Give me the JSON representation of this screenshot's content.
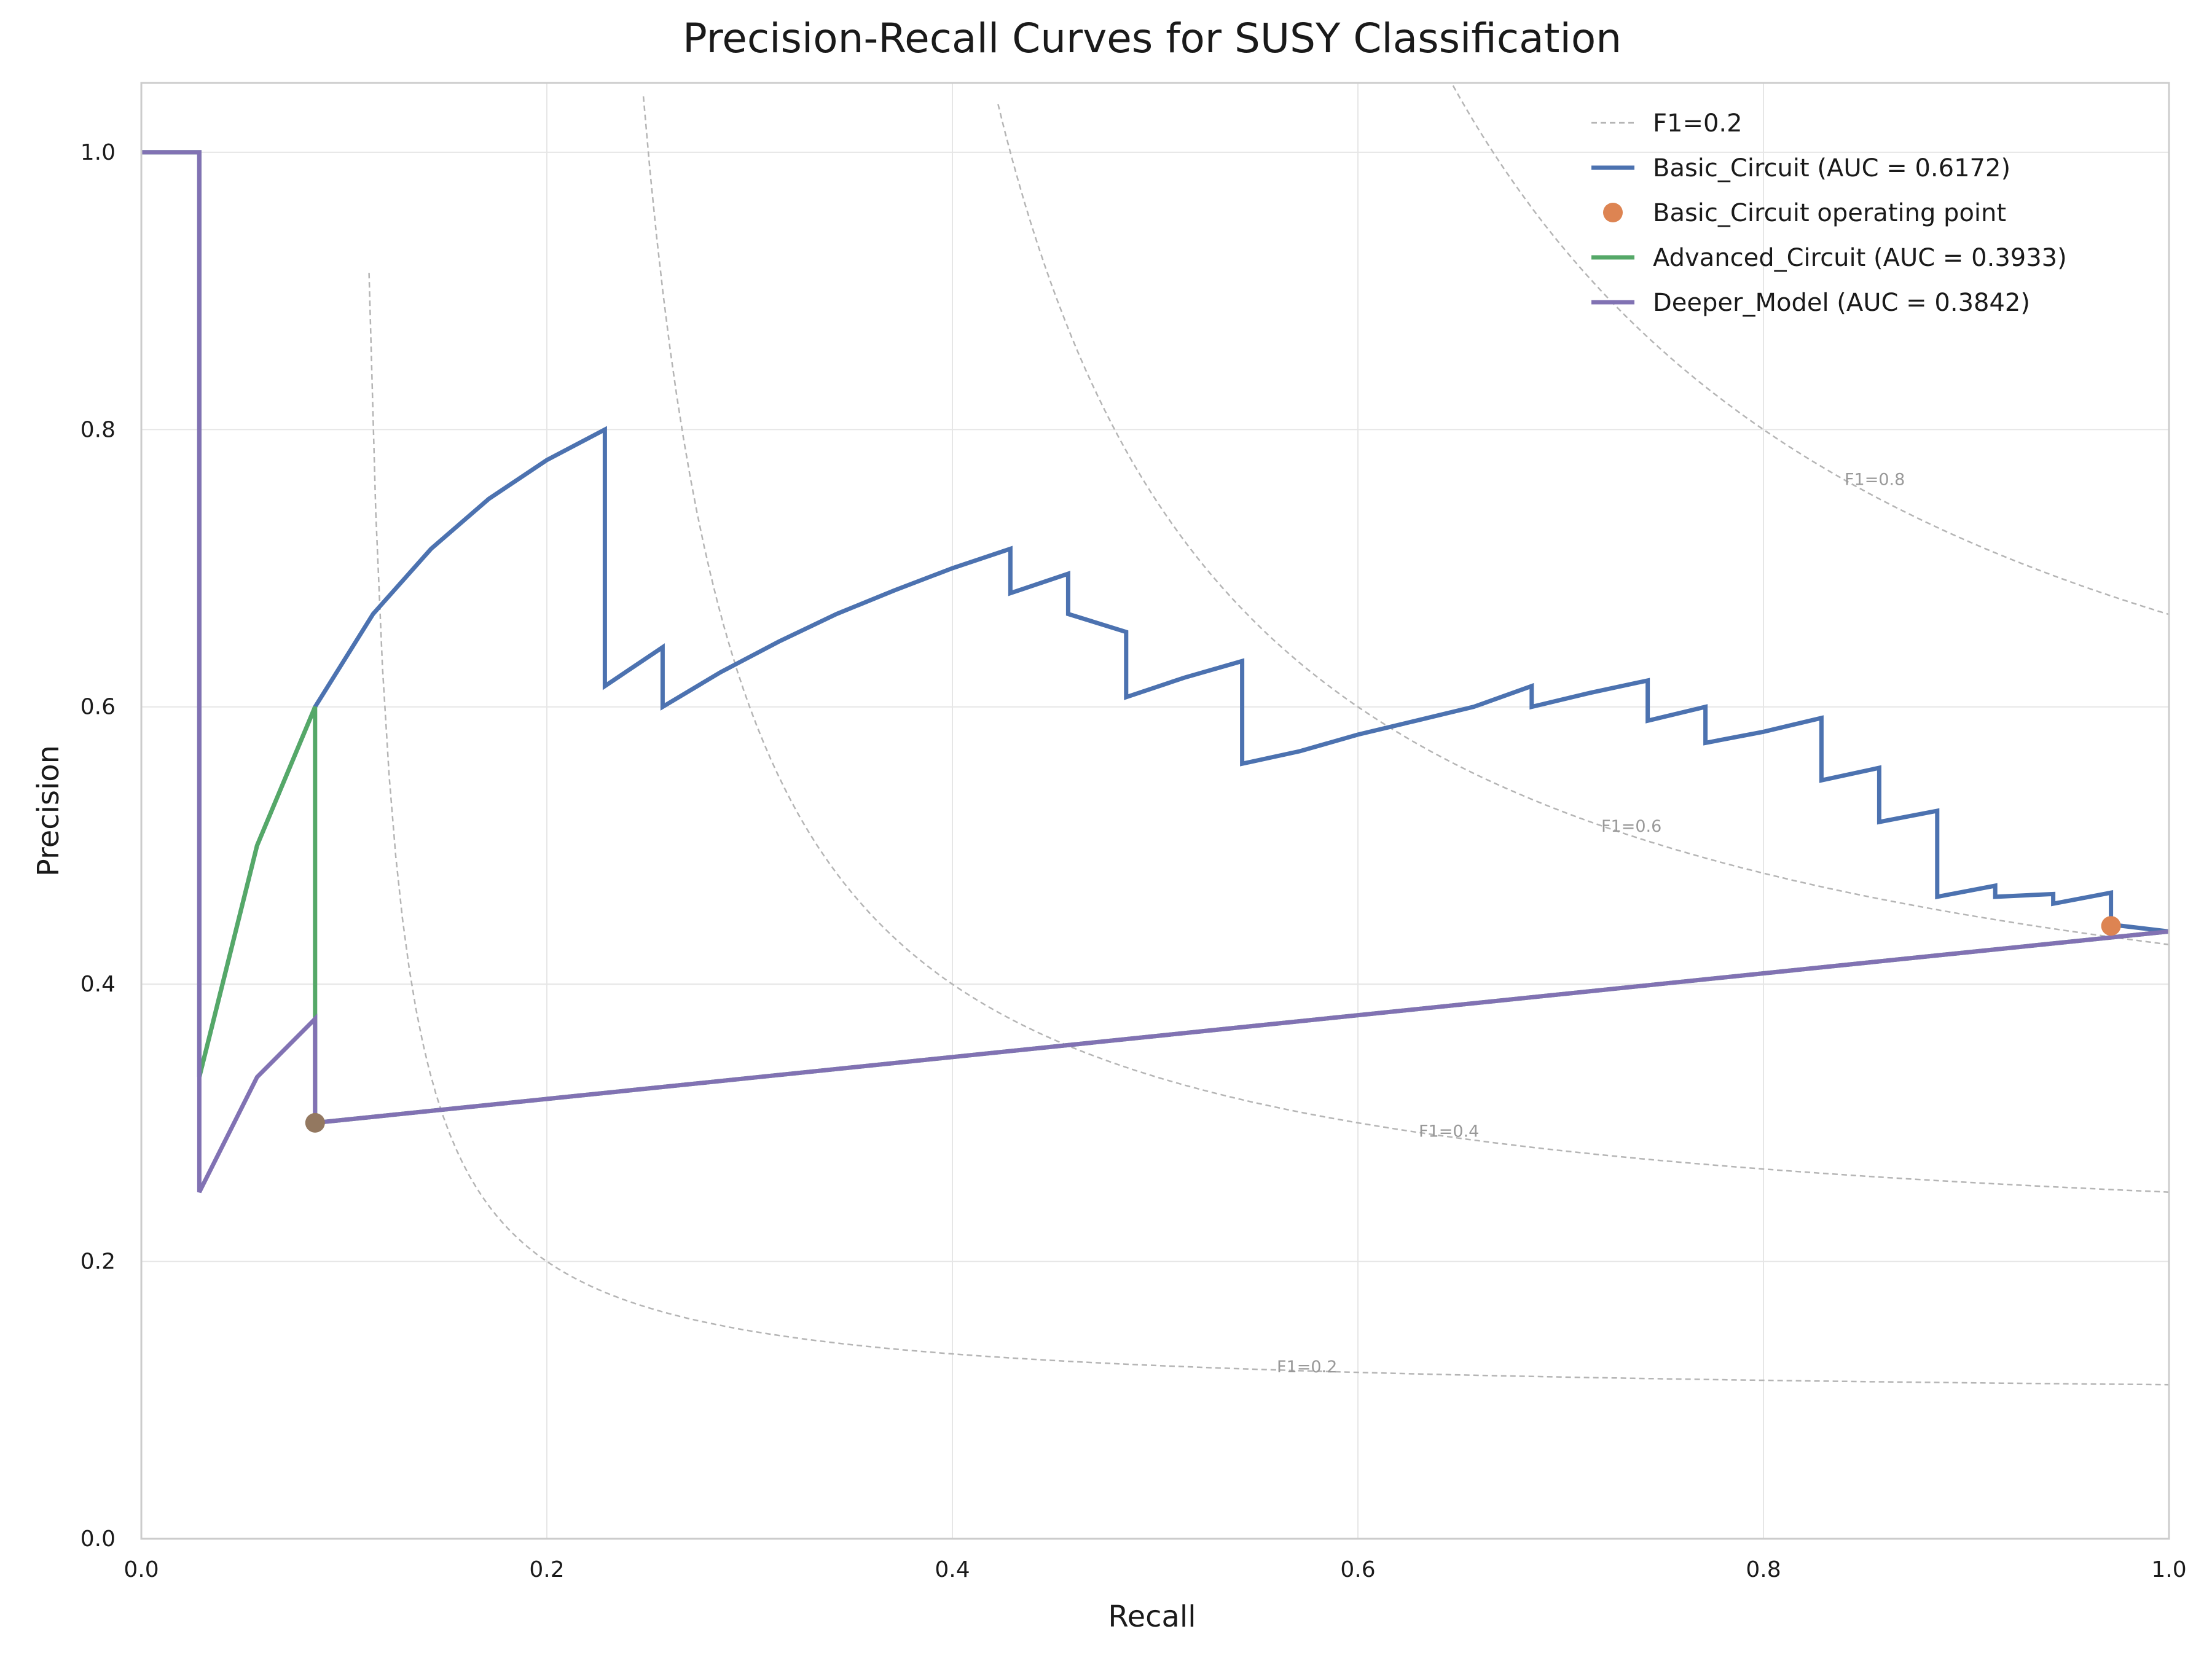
{
  "chart_data": {
    "type": "line",
    "title": "Precision-Recall Curves for SUSY Classification",
    "xlabel": "Recall",
    "ylabel": "Precision",
    "xlim": [
      0,
      1.0
    ],
    "ylim": [
      0,
      1.05
    ],
    "x_ticks": [
      0.0,
      0.2,
      0.4,
      0.6,
      0.8,
      1.0
    ],
    "x_tick_labels": [
      "0.0",
      "0.2",
      "0.4",
      "0.6",
      "0.8",
      "1.0"
    ],
    "y_ticks": [
      0.0,
      0.2,
      0.4,
      0.6,
      0.8,
      1.0
    ],
    "y_tick_labels": [
      "0.0",
      "0.2",
      "0.4",
      "0.6",
      "0.8",
      "1.0"
    ],
    "grid": true,
    "legend_position": "top-right",
    "f1_isolines": [
      {
        "f1": 0.2,
        "label": "F1=0.2",
        "label_at": [
          0.56,
          0.12
        ]
      },
      {
        "f1": 0.4,
        "label": "F1=0.4",
        "label_at": [
          0.63,
          0.29
        ]
      },
      {
        "f1": 0.6,
        "label": "F1=0.6",
        "label_at": [
          0.72,
          0.51
        ]
      },
      {
        "f1": 0.8,
        "label": "F1=0.8",
        "label_at": [
          0.84,
          0.76
        ]
      }
    ],
    "series": [
      {
        "name": "Basic_Circuit (AUC = 0.6172)",
        "color": "#4c72b0",
        "points": [
          [
            0.0,
            1.0
          ],
          [
            0.0286,
            1.0
          ],
          [
            0.0286,
            0.333
          ],
          [
            0.0571,
            0.5
          ],
          [
            0.0857,
            0.6
          ],
          [
            0.1143,
            0.667
          ],
          [
            0.1429,
            0.714
          ],
          [
            0.1714,
            0.75
          ],
          [
            0.2,
            0.778
          ],
          [
            0.2286,
            0.8
          ],
          [
            0.2286,
            0.615
          ],
          [
            0.2571,
            0.643
          ],
          [
            0.2571,
            0.6
          ],
          [
            0.2857,
            0.625
          ],
          [
            0.3143,
            0.647
          ],
          [
            0.3429,
            0.667
          ],
          [
            0.3714,
            0.684
          ],
          [
            0.4,
            0.7
          ],
          [
            0.4286,
            0.714
          ],
          [
            0.4286,
            0.682
          ],
          [
            0.4571,
            0.696
          ],
          [
            0.4571,
            0.667
          ],
          [
            0.4857,
            0.654
          ],
          [
            0.4857,
            0.607
          ],
          [
            0.5143,
            0.621
          ],
          [
            0.5429,
            0.633
          ],
          [
            0.5429,
            0.559
          ],
          [
            0.5714,
            0.568
          ],
          [
            0.6,
            0.58
          ],
          [
            0.6286,
            0.59
          ],
          [
            0.6571,
            0.6
          ],
          [
            0.6857,
            0.615
          ],
          [
            0.6857,
            0.6
          ],
          [
            0.7143,
            0.61
          ],
          [
            0.7429,
            0.619
          ],
          [
            0.7429,
            0.59
          ],
          [
            0.7714,
            0.6
          ],
          [
            0.7714,
            0.574
          ],
          [
            0.8,
            0.582
          ],
          [
            0.8286,
            0.592
          ],
          [
            0.8286,
            0.547
          ],
          [
            0.8571,
            0.556
          ],
          [
            0.8571,
            0.517
          ],
          [
            0.8857,
            0.525
          ],
          [
            0.8857,
            0.463
          ],
          [
            0.9143,
            0.471
          ],
          [
            0.9143,
            0.463
          ],
          [
            0.9429,
            0.465
          ],
          [
            0.9429,
            0.458
          ],
          [
            0.9714,
            0.466
          ],
          [
            0.9714,
            0.443
          ],
          [
            1.0,
            0.438
          ]
        ]
      },
      {
        "name": "Advanced_Circuit (AUC = 0.3933)",
        "color": "#55a868",
        "points": [
          [
            0.0,
            1.0
          ],
          [
            0.0286,
            1.0
          ],
          [
            0.0286,
            0.333
          ],
          [
            0.0571,
            0.5
          ],
          [
            0.0857,
            0.6
          ],
          [
            0.0857,
            0.3
          ],
          [
            1.0,
            0.438
          ]
        ]
      },
      {
        "name": "Deeper_Model (AUC = 0.3842)",
        "color": "#8172b3",
        "points": [
          [
            0.0,
            1.0
          ],
          [
            0.0286,
            1.0
          ],
          [
            0.0286,
            0.25
          ],
          [
            0.0571,
            0.333
          ],
          [
            0.0857,
            0.375
          ],
          [
            0.0857,
            0.3
          ],
          [
            1.0,
            0.438
          ]
        ]
      }
    ],
    "operating_points": [
      {
        "name": "Basic_Circuit operating point",
        "color": "#dd8452",
        "x": 0.9714,
        "y": 0.442
      },
      {
        "name": "",
        "color": "#937860",
        "x": 0.0857,
        "y": 0.3
      }
    ],
    "legend": [
      {
        "label": "F1=0.2",
        "kind": "dashed",
        "color": "#b0b0b0"
      },
      {
        "label": "Basic_Circuit (AUC = 0.6172)",
        "kind": "line",
        "color": "#4c72b0"
      },
      {
        "label": "Basic_Circuit operating point",
        "kind": "marker",
        "color": "#dd8452"
      },
      {
        "label": "Advanced_Circuit (AUC = 0.3933)",
        "kind": "line",
        "color": "#55a868"
      },
      {
        "label": "Deeper_Model (AUC = 0.3842)",
        "kind": "line",
        "color": "#8172b3"
      }
    ]
  }
}
